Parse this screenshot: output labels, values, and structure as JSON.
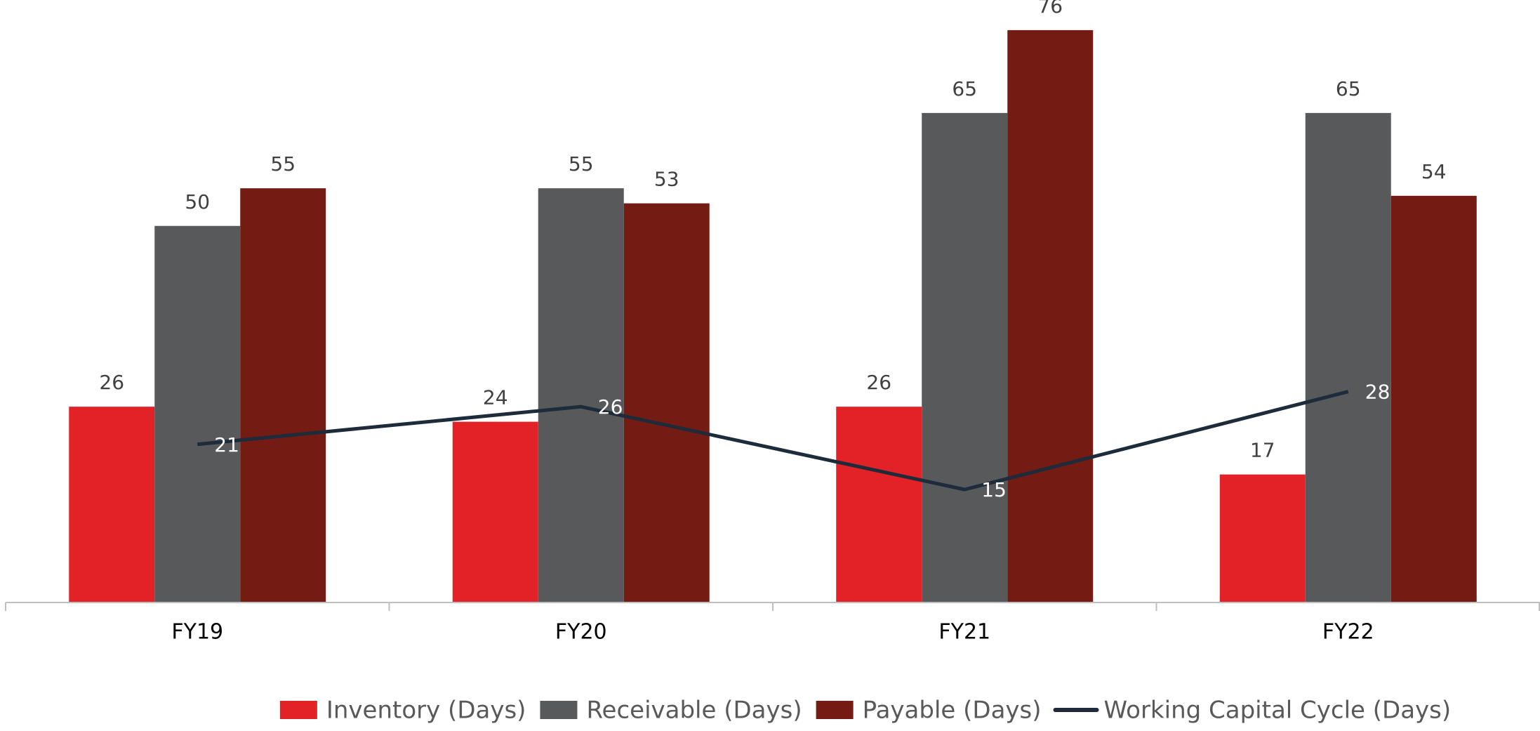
{
  "chart_data": {
    "type": "bar_line",
    "categories": [
      "FY19",
      "FY20",
      "FY21",
      "FY22"
    ],
    "series": [
      {
        "name": "Inventory (Days)",
        "color": "#e32227",
        "type": "bar",
        "values": [
          26,
          24,
          26,
          17
        ]
      },
      {
        "name": "Receivable (Days)",
        "color": "#58595b",
        "type": "bar",
        "values": [
          50,
          55,
          65,
          65
        ]
      },
      {
        "name": "Payable (Days)",
        "color": "#741b14",
        "type": "bar",
        "values": [
          55,
          53,
          76,
          54
        ]
      },
      {
        "name": "Working Capital Cycle (Days)",
        "color": "#1d2b3a",
        "type": "line",
        "values": [
          21,
          26,
          15,
          28
        ]
      }
    ],
    "ylim": [
      0,
      80
    ],
    "legend": "bottom"
  }
}
